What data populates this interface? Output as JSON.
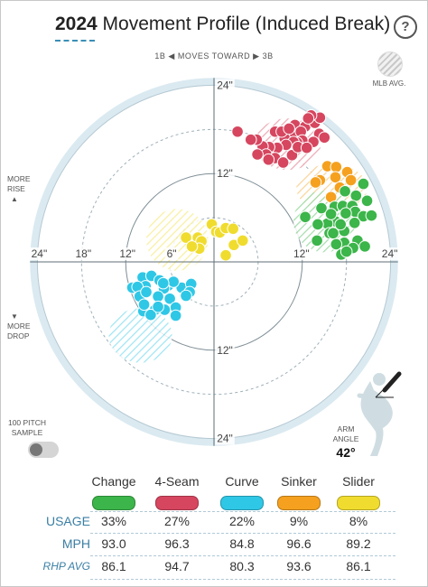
{
  "header": {
    "title_year": "2024",
    "title_rest": " Movement Profile (Induced Break)",
    "help_label": "?"
  },
  "direction_label": "1B ◀ MOVES TOWARD ▶ 3B",
  "legend": {
    "mlb_avg_label": "MLB AVG."
  },
  "side_labels": {
    "more_rise": [
      "MORE",
      "RISE"
    ],
    "more_drop": [
      "MORE",
      "DROP"
    ]
  },
  "sample_toggle": {
    "label": [
      "100 PITCH",
      "SAMPLE"
    ],
    "on": false
  },
  "arm_angle": {
    "label": [
      "ARM",
      "ANGLE"
    ],
    "value": "42°",
    "degrees": 42
  },
  "chart_data": {
    "type": "scatter",
    "title": "Movement Profile (Induced Break)",
    "x_unit": "inches of horizontal break",
    "y_unit": "inches of induced vertical break",
    "rings": [
      6,
      12,
      18,
      24
    ],
    "x_tick_labels": [
      {
        "value": -24,
        "text": "24\""
      },
      {
        "value": -18,
        "text": "18\""
      },
      {
        "value": -12,
        "text": "12\""
      },
      {
        "value": -6,
        "text": "6\""
      },
      {
        "value": 12,
        "text": "12\""
      },
      {
        "value": 24,
        "text": "24\""
      }
    ],
    "y_tick_labels": [
      {
        "value": 24,
        "text": "24\""
      },
      {
        "value": 12,
        "text": "12\""
      },
      {
        "value": -12,
        "text": "12\""
      },
      {
        "value": -24,
        "text": "24\""
      }
    ],
    "mlb_avg": [
      {
        "pitch": "4-Seam",
        "cx": 10,
        "cy": 16,
        "rx": 4.5,
        "ry": 3.5
      },
      {
        "pitch": "Sinker",
        "cx": 16,
        "cy": 10,
        "rx": 4.8,
        "ry": 3.3
      },
      {
        "pitch": "Change",
        "cx": 15,
        "cy": 5.5,
        "rx": 4.2,
        "ry": 4.2
      },
      {
        "pitch": "Slider",
        "cx": -5,
        "cy": 3,
        "rx": 4.2,
        "ry": 4.2
      },
      {
        "pitch": "Curve",
        "cx": -10,
        "cy": -10,
        "rx": 4.3,
        "ry": 3.7
      }
    ],
    "series": [
      {
        "name": "4-Seam",
        "color": "#d6465f",
        "points": [
          [
            11.0,
            18.6
          ],
          [
            12.4,
            18.4
          ],
          [
            13.7,
            18.9
          ],
          [
            14.4,
            19.6
          ],
          [
            13.2,
            19.9
          ],
          [
            12.8,
            19.5
          ],
          [
            11.7,
            17.3
          ],
          [
            10.6,
            17.1
          ],
          [
            9.6,
            16.8
          ],
          [
            8.3,
            17.7
          ],
          [
            9.2,
            17.7
          ],
          [
            10.2,
            18.1
          ],
          [
            11.8,
            17.7
          ],
          [
            14.3,
            17.4
          ],
          [
            15.0,
            16.9
          ],
          [
            13.5,
            16.3
          ],
          [
            12.0,
            16.5
          ],
          [
            11.3,
            16.2
          ],
          [
            10.8,
            16.3
          ],
          [
            9.8,
            15.9
          ],
          [
            8.6,
            15.5
          ],
          [
            7.5,
            15.6
          ],
          [
            6.6,
            15.7
          ],
          [
            5.8,
            16.6
          ],
          [
            5.0,
            16.6
          ],
          [
            7.1,
            14.6
          ],
          [
            8.3,
            14.1
          ],
          [
            9.4,
            13.5
          ],
          [
            10.6,
            14.5
          ],
          [
            7.4,
            13.9
          ],
          [
            5.9,
            14.6
          ],
          [
            11.4,
            15.6
          ],
          [
            12.6,
            15.5
          ],
          [
            3.2,
            17.7
          ]
        ]
      },
      {
        "name": "Sinker",
        "color": "#f5a11f",
        "points": [
          [
            15.4,
            13.0
          ],
          [
            16.6,
            12.9
          ],
          [
            18.1,
            12.2
          ],
          [
            16.5,
            11.5
          ],
          [
            18.6,
            11.1
          ],
          [
            14.4,
            11.1
          ],
          [
            13.8,
            10.8
          ],
          [
            17.1,
            10.1
          ],
          [
            15.9,
            8.8
          ]
        ]
      },
      {
        "name": "Change",
        "color": "#3cb54a",
        "points": [
          [
            20.3,
            10.6
          ],
          [
            17.8,
            9.6
          ],
          [
            19.3,
            9.0
          ],
          [
            20.8,
            8.3
          ],
          [
            16.4,
            7.5
          ],
          [
            17.5,
            7.6
          ],
          [
            18.8,
            7.6
          ],
          [
            14.6,
            7.3
          ],
          [
            19.2,
            6.8
          ],
          [
            17.9,
            6.6
          ],
          [
            20.3,
            6.2
          ],
          [
            19.1,
            5.3
          ],
          [
            21.4,
            6.3
          ],
          [
            16.5,
            5.5
          ],
          [
            15.4,
            5.2
          ],
          [
            14.1,
            5.1
          ],
          [
            15.7,
            3.9
          ],
          [
            17.7,
            4.2
          ],
          [
            14.0,
            2.9
          ],
          [
            17.7,
            2.6
          ],
          [
            16.6,
            2.4
          ],
          [
            19.5,
            2.9
          ],
          [
            20.5,
            2.1
          ],
          [
            18.9,
            1.9
          ],
          [
            17.3,
            1.0
          ],
          [
            18.0,
            1.4
          ],
          [
            12.4,
            6.1
          ],
          [
            15.9,
            6.5
          ],
          [
            16.2,
            3.9
          ],
          [
            17.2,
            5.1
          ]
        ]
      },
      {
        "name": "Slider",
        "color": "#f0dc2e",
        "points": [
          [
            -0.3,
            5.1
          ],
          [
            0.3,
            4.1
          ],
          [
            0.8,
            4.0
          ],
          [
            1.6,
            4.6
          ],
          [
            2.6,
            4.5
          ],
          [
            -3.8,
            3.3
          ],
          [
            -2.2,
            3.3
          ],
          [
            2.7,
            2.3
          ],
          [
            -1.7,
            2.8
          ],
          [
            3.9,
            2.9
          ],
          [
            -2.0,
            1.8
          ],
          [
            1.6,
            0.9
          ],
          [
            -3.0,
            2.1
          ]
        ]
      },
      {
        "name": "Curve",
        "color": "#2fc7e6",
        "points": [
          [
            -9.7,
            -2.1
          ],
          [
            -8.5,
            -1.9
          ],
          [
            -7.4,
            -2.5
          ],
          [
            -11.1,
            -3.5
          ],
          [
            -9.3,
            -3.3
          ],
          [
            -6.2,
            -3.2
          ],
          [
            -6.8,
            -3.6
          ],
          [
            -4.4,
            -3.5
          ],
          [
            -10.4,
            -3.4
          ],
          [
            -3.1,
            -3.0
          ],
          [
            -5.5,
            -2.7
          ],
          [
            -6.9,
            -2.9
          ],
          [
            -10.1,
            -4.7
          ],
          [
            -7.6,
            -4.7
          ],
          [
            -6.0,
            -5.0
          ],
          [
            -3.3,
            -4.1
          ],
          [
            -9.2,
            -4.1
          ],
          [
            -5.2,
            -6.2
          ],
          [
            -8.0,
            -6.5
          ],
          [
            -6.7,
            -6.5
          ],
          [
            -9.6,
            -6.7
          ],
          [
            -5.2,
            -7.3
          ],
          [
            -8.6,
            -7.2
          ],
          [
            -7.6,
            -6.1
          ],
          [
            -3.8,
            -4.6
          ],
          [
            -9.5,
            -5.8
          ]
        ]
      }
    ]
  },
  "pitch_table": {
    "row_labels": [
      "USAGE",
      "MPH",
      "RHP AVG"
    ],
    "pitches": [
      {
        "name": "Change",
        "color": "#3cb54a",
        "usage": "33%",
        "mph": "93.0",
        "rhp_avg": "86.1"
      },
      {
        "name": "4-Seam",
        "color": "#d6465f",
        "usage": "27%",
        "mph": "96.3",
        "rhp_avg": "94.7"
      },
      {
        "name": "Curve",
        "color": "#2fc7e6",
        "usage": "22%",
        "mph": "84.8",
        "rhp_avg": "80.3"
      },
      {
        "name": "Sinker",
        "color": "#f5a11f",
        "usage": "9%",
        "mph": "96.6",
        "rhp_avg": "93.6"
      },
      {
        "name": "Slider",
        "color": "#f0dc2e",
        "usage": "8%",
        "mph": "89.2",
        "rhp_avg": "86.1"
      }
    ]
  }
}
